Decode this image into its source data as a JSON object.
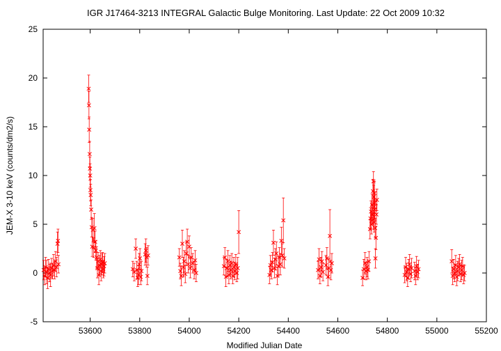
{
  "chart_data": {
    "type": "scatter",
    "title": "IGR J17464-3213   INTEGRAL Galactic Bulge Monitoring.  Last Update: 22 Oct 2009 10:32",
    "xlabel": "Modified Julian Date",
    "ylabel": "JEM-X 3-10 keV (counts/dm2/s)",
    "xlim": [
      53410,
      55200
    ],
    "ylim": [
      -5,
      25
    ],
    "x_ticks": [
      53600,
      53800,
      54000,
      54200,
      54400,
      54600,
      54800,
      55000,
      55200
    ],
    "y_ticks": [
      -5,
      0,
      5,
      10,
      15,
      20,
      25
    ],
    "grid": false,
    "color": "#ff0000",
    "marker": "x with vertical error bars",
    "series": [
      {
        "points": [
          {
            "x": 53412,
            "y": 0.3,
            "err": 1.0
          },
          {
            "x": 53416,
            "y": -0.3,
            "err": 0.9
          },
          {
            "x": 53420,
            "y": 0.6,
            "err": 1.0
          },
          {
            "x": 53424,
            "y": 0.1,
            "err": 1.2
          },
          {
            "x": 53428,
            "y": -0.5,
            "err": 1.1
          },
          {
            "x": 53432,
            "y": 0.4,
            "err": 1.0
          },
          {
            "x": 53436,
            "y": 0.0,
            "err": 0.9
          },
          {
            "x": 53440,
            "y": -0.2,
            "err": 1.2
          },
          {
            "x": 53444,
            "y": 0.5,
            "err": 1.0
          },
          {
            "x": 53448,
            "y": 0.2,
            "err": 0.8
          },
          {
            "x": 53452,
            "y": 0.8,
            "err": 1.1
          },
          {
            "x": 53456,
            "y": 0.3,
            "err": 0.9
          },
          {
            "x": 53460,
            "y": 1.2,
            "err": 1.0
          },
          {
            "x": 53464,
            "y": 0.6,
            "err": 1.0
          },
          {
            "x": 53468,
            "y": 3.0,
            "err": 1.2
          },
          {
            "x": 53470,
            "y": 3.3,
            "err": 1.2
          },
          {
            "x": 53472,
            "y": 0.9,
            "err": 0.9
          },
          {
            "x": 53594,
            "y": 18.9,
            "err": 1.4
          },
          {
            "x": 53595,
            "y": 17.2,
            "err": 1.4
          },
          {
            "x": 53596,
            "y": 14.7,
            "err": 1.3
          },
          {
            "x": 53598,
            "y": 12.2,
            "err": 1.3
          },
          {
            "x": 53599,
            "y": 10.7,
            "err": 1.2
          },
          {
            "x": 53600,
            "y": 10.0,
            "err": 1.2
          },
          {
            "x": 53601,
            "y": 8.5,
            "err": 1.1
          },
          {
            "x": 53602,
            "y": 8.0,
            "err": 1.1
          },
          {
            "x": 53604,
            "y": 6.5,
            "err": 1.0
          },
          {
            "x": 53606,
            "y": 4.7,
            "err": 1.0
          },
          {
            "x": 53608,
            "y": 2.7,
            "err": 1.0
          },
          {
            "x": 53611,
            "y": 4.4,
            "err": 1.2
          },
          {
            "x": 53614,
            "y": 2.6,
            "err": 1.0
          },
          {
            "x": 53617,
            "y": 4.6,
            "err": 1.5
          },
          {
            "x": 53620,
            "y": 3.2,
            "err": 1.1
          },
          {
            "x": 53623,
            "y": 2.3,
            "err": 1.0
          },
          {
            "x": 53626,
            "y": 1.6,
            "err": 1.1
          },
          {
            "x": 53629,
            "y": 0.5,
            "err": 1.0
          },
          {
            "x": 53632,
            "y": 1.2,
            "err": 0.9
          },
          {
            "x": 53635,
            "y": -0.2,
            "err": 1.0
          },
          {
            "x": 53638,
            "y": 0.8,
            "err": 1.0
          },
          {
            "x": 53641,
            "y": 1.4,
            "err": 0.9
          },
          {
            "x": 53644,
            "y": 0.2,
            "err": 1.0
          },
          {
            "x": 53647,
            "y": 0.9,
            "err": 1.1
          },
          {
            "x": 53650,
            "y": 1.1,
            "err": 1.0
          },
          {
            "x": 53653,
            "y": 0.4,
            "err": 0.9
          },
          {
            "x": 53656,
            "y": 0.7,
            "err": 1.0
          },
          {
            "x": 53659,
            "y": 1.0,
            "err": 1.0
          },
          {
            "x": 53772,
            "y": 0.4,
            "err": 0.8
          },
          {
            "x": 53778,
            "y": 0.1,
            "err": 0.9
          },
          {
            "x": 53784,
            "y": 2.5,
            "err": 1.0
          },
          {
            "x": 53788,
            "y": 0.3,
            "err": 0.9
          },
          {
            "x": 53792,
            "y": -0.5,
            "err": 0.9
          },
          {
            "x": 53795,
            "y": -0.2,
            "err": 1.0
          },
          {
            "x": 53798,
            "y": 0.9,
            "err": 1.1
          },
          {
            "x": 53801,
            "y": 1.5,
            "err": 1.0
          },
          {
            "x": 53804,
            "y": -0.4,
            "err": 0.8
          },
          {
            "x": 53807,
            "y": 0.2,
            "err": 1.0
          },
          {
            "x": 53822,
            "y": 1.9,
            "err": 1.1
          },
          {
            "x": 53825,
            "y": 2.3,
            "err": 1.2
          },
          {
            "x": 53828,
            "y": 1.6,
            "err": 1.0
          },
          {
            "x": 53831,
            "y": -0.3,
            "err": 0.9
          },
          {
            "x": 53834,
            "y": 1.8,
            "err": 1.0
          },
          {
            "x": 53960,
            "y": 1.6,
            "err": 0.9
          },
          {
            "x": 53964,
            "y": 0.2,
            "err": 0.8
          },
          {
            "x": 53968,
            "y": -0.3,
            "err": 1.0
          },
          {
            "x": 53972,
            "y": 3.0,
            "err": 1.4
          },
          {
            "x": 53976,
            "y": 0.6,
            "err": 1.0
          },
          {
            "x": 53980,
            "y": 1.2,
            "err": 1.1
          },
          {
            "x": 53984,
            "y": -0.1,
            "err": 0.9
          },
          {
            "x": 53988,
            "y": 2.0,
            "err": 1.2
          },
          {
            "x": 53992,
            "y": 3.2,
            "err": 1.3
          },
          {
            "x": 53996,
            "y": 0.9,
            "err": 0.9
          },
          {
            "x": 54000,
            "y": 2.7,
            "err": 1.1
          },
          {
            "x": 54004,
            "y": 0.5,
            "err": 1.0
          },
          {
            "x": 54008,
            "y": 1.6,
            "err": 1.0
          },
          {
            "x": 54014,
            "y": 1.0,
            "err": 1.0
          },
          {
            "x": 54020,
            "y": 0.3,
            "err": 0.9
          },
          {
            "x": 54024,
            "y": 1.3,
            "err": 1.0
          },
          {
            "x": 54028,
            "y": 0.0,
            "err": 0.9
          },
          {
            "x": 54140,
            "y": 0.7,
            "err": 0.9
          },
          {
            "x": 54144,
            "y": 1.6,
            "err": 1.0
          },
          {
            "x": 54148,
            "y": -0.4,
            "err": 1.0
          },
          {
            "x": 54152,
            "y": 0.5,
            "err": 0.9
          },
          {
            "x": 54156,
            "y": 1.2,
            "err": 1.1
          },
          {
            "x": 54160,
            "y": -0.2,
            "err": 0.9
          },
          {
            "x": 54164,
            "y": 0.8,
            "err": 1.0
          },
          {
            "x": 54168,
            "y": 0.3,
            "err": 0.9
          },
          {
            "x": 54172,
            "y": 1.0,
            "err": 1.0
          },
          {
            "x": 54176,
            "y": -0.3,
            "err": 0.8
          },
          {
            "x": 54180,
            "y": 0.6,
            "err": 1.0
          },
          {
            "x": 54184,
            "y": 0.2,
            "err": 0.9
          },
          {
            "x": 54188,
            "y": 0.9,
            "err": 1.0
          },
          {
            "x": 54192,
            "y": 0.0,
            "err": 0.9
          },
          {
            "x": 54196,
            "y": 0.5,
            "err": 1.1
          },
          {
            "x": 54200,
            "y": 4.2,
            "err": 2.2
          },
          {
            "x": 54324,
            "y": -0.2,
            "err": 0.9
          },
          {
            "x": 54328,
            "y": 0.8,
            "err": 1.0
          },
          {
            "x": 54332,
            "y": 0.3,
            "err": 0.9
          },
          {
            "x": 54336,
            "y": 1.1,
            "err": 1.0
          },
          {
            "x": 54340,
            "y": 3.1,
            "err": 1.3
          },
          {
            "x": 54344,
            "y": 0.5,
            "err": 1.0
          },
          {
            "x": 54348,
            "y": 1.4,
            "err": 1.1
          },
          {
            "x": 54352,
            "y": 2.0,
            "err": 1.2
          },
          {
            "x": 54356,
            "y": -0.3,
            "err": 0.9
          },
          {
            "x": 54360,
            "y": 0.7,
            "err": 1.0
          },
          {
            "x": 54364,
            "y": 1.6,
            "err": 1.0
          },
          {
            "x": 54368,
            "y": 0.9,
            "err": 1.1
          },
          {
            "x": 54372,
            "y": 3.3,
            "err": 1.4
          },
          {
            "x": 54376,
            "y": 1.8,
            "err": 1.2
          },
          {
            "x": 54380,
            "y": 5.4,
            "err": 2.3
          },
          {
            "x": 54384,
            "y": 1.5,
            "err": 1.0
          },
          {
            "x": 54520,
            "y": 0.3,
            "err": 0.9
          },
          {
            "x": 54524,
            "y": 1.4,
            "err": 1.1
          },
          {
            "x": 54528,
            "y": -0.3,
            "err": 0.8
          },
          {
            "x": 54532,
            "y": 0.6,
            "err": 1.0
          },
          {
            "x": 54536,
            "y": 1.2,
            "err": 1.0
          },
          {
            "x": 54540,
            "y": 0.1,
            "err": 0.9
          },
          {
            "x": 54552,
            "y": 0.8,
            "err": 1.0
          },
          {
            "x": 54556,
            "y": 1.5,
            "err": 1.1
          },
          {
            "x": 54560,
            "y": -0.4,
            "err": 0.9
          },
          {
            "x": 54564,
            "y": 0.5,
            "err": 1.0
          },
          {
            "x": 54568,
            "y": 3.8,
            "err": 2.7
          },
          {
            "x": 54572,
            "y": 0.3,
            "err": 1.0
          },
          {
            "x": 54576,
            "y": 1.0,
            "err": 1.0
          },
          {
            "x": 54700,
            "y": -0.5,
            "err": 0.8
          },
          {
            "x": 54705,
            "y": 0.4,
            "err": 1.0
          },
          {
            "x": 54710,
            "y": 1.0,
            "err": 1.1
          },
          {
            "x": 54714,
            "y": 0.2,
            "err": 0.9
          },
          {
            "x": 54718,
            "y": 0.6,
            "err": 1.0
          },
          {
            "x": 54722,
            "y": 0.3,
            "err": 0.9
          },
          {
            "x": 54726,
            "y": 1.2,
            "err": 1.0
          },
          {
            "x": 54730,
            "y": 4.5,
            "err": 1.0
          },
          {
            "x": 54732,
            "y": 5.6,
            "err": 1.1
          },
          {
            "x": 54734,
            "y": 6.3,
            "err": 1.1
          },
          {
            "x": 54736,
            "y": 5.0,
            "err": 1.0
          },
          {
            "x": 54738,
            "y": 7.0,
            "err": 1.1
          },
          {
            "x": 54740,
            "y": 6.0,
            "err": 1.0
          },
          {
            "x": 54742,
            "y": 8.4,
            "err": 1.2
          },
          {
            "x": 54743,
            "y": 5.5,
            "err": 1.0
          },
          {
            "x": 54744,
            "y": 9.4,
            "err": 1.0
          },
          {
            "x": 54745,
            "y": 7.8,
            "err": 1.2
          },
          {
            "x": 54746,
            "y": 6.8,
            "err": 1.1
          },
          {
            "x": 54747,
            "y": 5.2,
            "err": 1.0
          },
          {
            "x": 54748,
            "y": 8.2,
            "err": 1.2
          },
          {
            "x": 54749,
            "y": 6.5,
            "err": 1.0
          },
          {
            "x": 54750,
            "y": 7.2,
            "err": 1.1
          },
          {
            "x": 54751,
            "y": 4.6,
            "err": 1.0
          },
          {
            "x": 54752,
            "y": 1.5,
            "err": 1.0
          },
          {
            "x": 54754,
            "y": 3.6,
            "err": 1.2
          },
          {
            "x": 54756,
            "y": 6.0,
            "err": 1.0
          },
          {
            "x": 54758,
            "y": 7.5,
            "err": 1.1
          },
          {
            "x": 54870,
            "y": -0.2,
            "err": 0.8
          },
          {
            "x": 54874,
            "y": 0.6,
            "err": 1.0
          },
          {
            "x": 54878,
            "y": 0.1,
            "err": 0.9
          },
          {
            "x": 54882,
            "y": -0.5,
            "err": 0.9
          },
          {
            "x": 54886,
            "y": 0.4,
            "err": 1.0
          },
          {
            "x": 54890,
            "y": 0.9,
            "err": 1.0
          },
          {
            "x": 54894,
            "y": -0.1,
            "err": 0.8
          },
          {
            "x": 54898,
            "y": 0.5,
            "err": 1.0
          },
          {
            "x": 54910,
            "y": 0.2,
            "err": 0.9
          },
          {
            "x": 54914,
            "y": -0.3,
            "err": 0.9
          },
          {
            "x": 54918,
            "y": 0.7,
            "err": 1.0
          },
          {
            "x": 54922,
            "y": 0.1,
            "err": 0.8
          },
          {
            "x": 54926,
            "y": 0.4,
            "err": 0.9
          },
          {
            "x": 55060,
            "y": 1.2,
            "err": 1.2
          },
          {
            "x": 55064,
            "y": -0.3,
            "err": 0.9
          },
          {
            "x": 55068,
            "y": 0.4,
            "err": 1.0
          },
          {
            "x": 55072,
            "y": 0.0,
            "err": 0.9
          },
          {
            "x": 55076,
            "y": 0.8,
            "err": 1.0
          },
          {
            "x": 55080,
            "y": -0.4,
            "err": 0.9
          },
          {
            "x": 55084,
            "y": 0.2,
            "err": 1.0
          },
          {
            "x": 55088,
            "y": 0.6,
            "err": 0.9
          },
          {
            "x": 55092,
            "y": 0.9,
            "err": 1.0
          },
          {
            "x": 55096,
            "y": -0.1,
            "err": 0.8
          },
          {
            "x": 55100,
            "y": 0.3,
            "err": 1.0
          },
          {
            "x": 55104,
            "y": 0.7,
            "err": 0.9
          },
          {
            "x": 55108,
            "y": -0.2,
            "err": 0.9
          },
          {
            "x": 55112,
            "y": 0.0,
            "err": 0.8
          }
        ]
      }
    ]
  }
}
